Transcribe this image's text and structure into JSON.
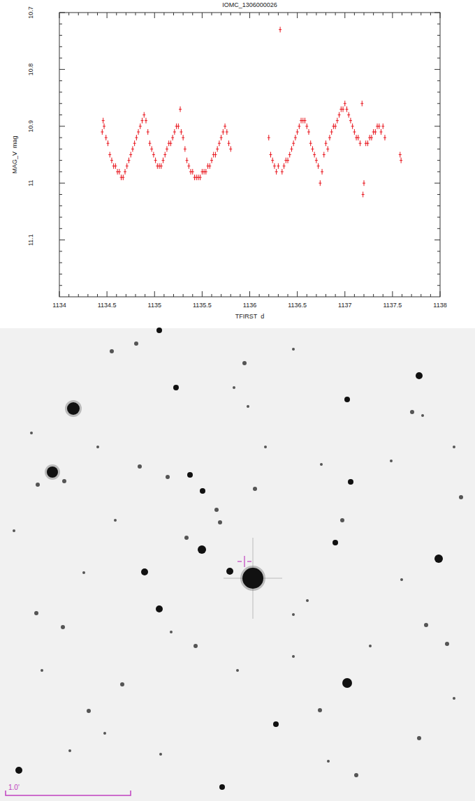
{
  "chart_data": {
    "type": "scatter",
    "title": "IOMC_1306000026",
    "x_label": "TFIRST  d",
    "y_label": "MAG_V  mag",
    "color": "#e8141c",
    "marker": "plus",
    "xlim": [
      1134,
      1138
    ],
    "ylim": [
      11.2,
      10.7
    ],
    "xticks": [
      1134,
      1134.5,
      1135,
      1135.5,
      1136,
      1136.5,
      1137,
      1137.5,
      1138
    ],
    "yticks": [
      10.7,
      10.8,
      10.9,
      11,
      11.1
    ],
    "x": [
      1134.45,
      1134.46,
      1134.47,
      1134.49,
      1134.51,
      1134.53,
      1134.55,
      1134.57,
      1134.59,
      1134.61,
      1134.63,
      1134.65,
      1134.67,
      1134.69,
      1134.71,
      1134.73,
      1134.75,
      1134.77,
      1134.79,
      1134.81,
      1134.83,
      1134.85,
      1134.87,
      1134.89,
      1134.91,
      1134.93,
      1134.95,
      1134.97,
      1134.99,
      1135.01,
      1135.03,
      1135.05,
      1135.07,
      1135.09,
      1135.11,
      1135.13,
      1135.15,
      1135.17,
      1135.19,
      1135.21,
      1135.23,
      1135.25,
      1135.27,
      1135.28,
      1135.3,
      1135.32,
      1135.34,
      1135.36,
      1135.38,
      1135.4,
      1135.42,
      1135.44,
      1135.46,
      1135.48,
      1135.5,
      1135.52,
      1135.54,
      1135.56,
      1135.58,
      1135.6,
      1135.62,
      1135.64,
      1135.66,
      1135.68,
      1135.7,
      1135.72,
      1135.74,
      1135.76,
      1135.78,
      1135.8,
      1136.2,
      1136.22,
      1136.24,
      1136.26,
      1136.28,
      1136.3,
      1136.32,
      1136.34,
      1136.36,
      1136.38,
      1136.4,
      1136.42,
      1136.44,
      1136.46,
      1136.48,
      1136.5,
      1136.52,
      1136.54,
      1136.56,
      1136.58,
      1136.6,
      1136.62,
      1136.64,
      1136.66,
      1136.68,
      1136.7,
      1136.72,
      1136.74,
      1136.76,
      1136.78,
      1136.8,
      1136.82,
      1136.84,
      1136.86,
      1136.88,
      1136.9,
      1136.92,
      1136.94,
      1136.96,
      1136.98,
      1137.0,
      1137.02,
      1137.04,
      1137.06,
      1137.08,
      1137.1,
      1137.12,
      1137.14,
      1137.16,
      1137.18,
      1137.19,
      1137.2,
      1137.22,
      1137.24,
      1137.26,
      1137.28,
      1137.3,
      1137.32,
      1137.34,
      1137.36,
      1137.38,
      1137.4,
      1137.42,
      1137.58,
      1137.59
    ],
    "values": [
      10.91,
      10.89,
      10.9,
      10.92,
      10.93,
      10.95,
      10.96,
      10.97,
      10.97,
      10.98,
      10.98,
      10.99,
      10.99,
      10.98,
      10.97,
      10.96,
      10.95,
      10.94,
      10.93,
      10.92,
      10.91,
      10.9,
      10.89,
      10.88,
      10.89,
      10.91,
      10.93,
      10.94,
      10.95,
      10.96,
      10.97,
      10.97,
      10.97,
      10.96,
      10.95,
      10.94,
      10.93,
      10.93,
      10.92,
      10.91,
      10.9,
      10.9,
      10.87,
      10.91,
      10.92,
      10.94,
      10.96,
      10.97,
      10.98,
      10.98,
      10.99,
      10.99,
      10.99,
      10.99,
      10.98,
      10.98,
      10.98,
      10.97,
      10.97,
      10.96,
      10.95,
      10.95,
      10.94,
      10.93,
      10.92,
      10.91,
      10.9,
      10.91,
      10.93,
      10.94,
      10.92,
      10.95,
      10.96,
      10.97,
      10.98,
      10.97,
      10.73,
      10.98,
      10.97,
      10.96,
      10.96,
      10.95,
      10.94,
      10.93,
      10.92,
      10.91,
      10.9,
      10.89,
      10.89,
      10.89,
      10.9,
      10.91,
      10.93,
      10.94,
      10.95,
      10.96,
      10.97,
      11.0,
      10.98,
      10.95,
      10.93,
      10.94,
      10.92,
      10.91,
      10.9,
      10.9,
      10.89,
      10.88,
      10.87,
      10.87,
      10.86,
      10.87,
      10.88,
      10.89,
      10.9,
      10.91,
      10.92,
      10.92,
      10.93,
      10.86,
      11.02,
      11.0,
      10.93,
      10.93,
      10.92,
      10.92,
      10.91,
      10.91,
      10.9,
      10.9,
      10.91,
      10.9,
      10.92,
      10.95,
      10.96
    ]
  },
  "finder_chart": {
    "scale_label": "1.0'"
  }
}
